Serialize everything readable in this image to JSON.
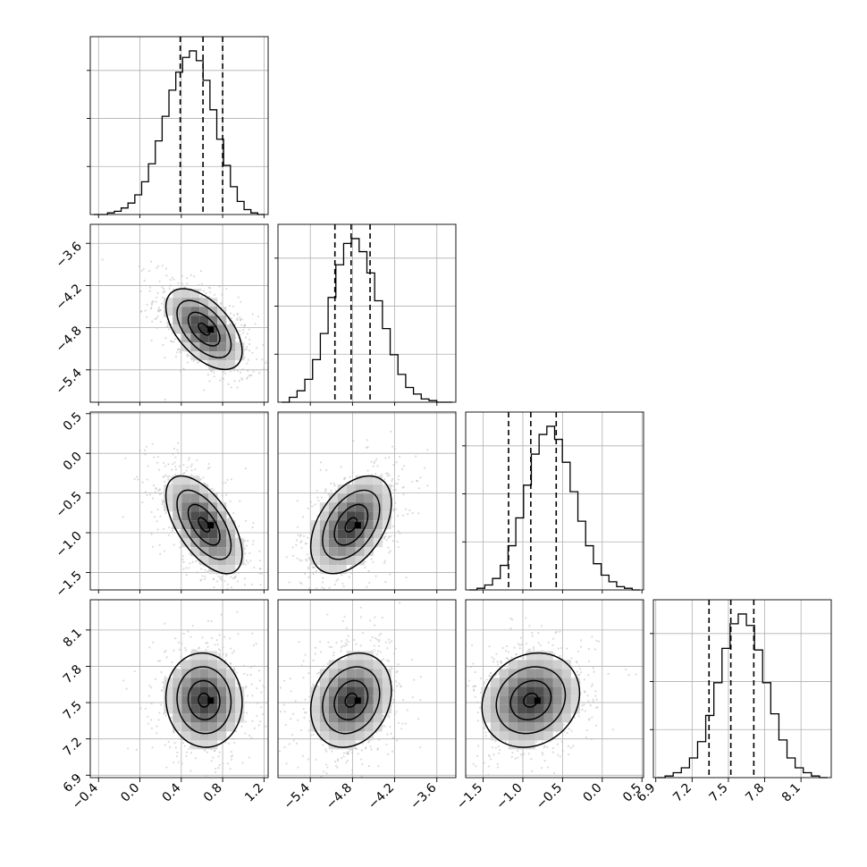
{
  "chart_data": {
    "type": "corner",
    "description": "Corner plot of 4 parameters: 1D marginal histograms on diagonal with dashed quantile lines; 2D scatter + density contours below diagonal.",
    "grid": true,
    "parameters": [
      {
        "ticks": [
          "−0.4",
          "0.0",
          "0.4",
          "0.8",
          "1.2"
        ],
        "tick_values": [
          -0.4,
          0.0,
          0.4,
          0.8,
          1.2
        ],
        "range": [
          -0.48,
          1.24
        ],
        "quantiles": [
          0.39,
          0.61,
          0.8
        ],
        "hist_bins": [
          -0.48,
          1.24
        ],
        "hist_heights": [
          0,
          0,
          1,
          2,
          4,
          7,
          12,
          20,
          31,
          45,
          60,
          76,
          87,
          96,
          100,
          94,
          82,
          64,
          46,
          30,
          17,
          8,
          3,
          1,
          0
        ]
      },
      {
        "ticks": [
          "−5.4",
          "−4.8",
          "−4.2",
          "−3.6"
        ],
        "tick_values": [
          -5.4,
          -4.8,
          -4.2,
          -3.6
        ],
        "range": [
          -5.86,
          -3.33
        ],
        "quantiles": [
          -5.05,
          -4.82,
          -4.55
        ],
        "hist_heights": [
          0,
          3,
          7,
          14,
          26,
          42,
          64,
          84,
          97,
          100,
          92,
          79,
          62,
          45,
          29,
          17,
          9,
          5,
          2,
          1,
          0,
          0
        ]
      },
      {
        "ticks": [
          "−1.5",
          "−1.0",
          "−0.5",
          "0.0",
          "0.5"
        ],
        "tick_values": [
          -1.5,
          -1.0,
          -0.5,
          0.0,
          0.5
        ],
        "range": [
          -1.72,
          0.52
        ],
        "quantiles": [
          -1.18,
          -0.9,
          -0.58
        ],
        "hist_heights": [
          0,
          1,
          3,
          7,
          15,
          27,
          44,
          64,
          83,
          95,
          100,
          92,
          78,
          60,
          42,
          27,
          16,
          9,
          5,
          2,
          1,
          0
        ]
      },
      {
        "ticks": [
          "6.9",
          "7.2",
          "7.5",
          "7.8",
          "8.1"
        ],
        "tick_values": [
          6.9,
          7.2,
          7.5,
          7.8,
          8.1
        ],
        "range": [
          6.88,
          8.35
        ],
        "quantiles": [
          7.34,
          7.52,
          7.71
        ],
        "hist_heights": [
          0,
          1,
          3,
          6,
          12,
          22,
          38,
          58,
          79,
          94,
          100,
          93,
          78,
          58,
          39,
          23,
          12,
          6,
          3,
          1,
          0
        ]
      }
    ],
    "pairs": [
      {
        "row": 1,
        "col": 0,
        "mean": [
          0.62,
          -4.82
        ],
        "corr": -0.55,
        "sd": [
          0.18,
          0.28
        ]
      },
      {
        "row": 2,
        "col": 0,
        "mean": [
          0.62,
          -0.9
        ],
        "corr": -0.6,
        "sd": [
          0.18,
          0.3
        ]
      },
      {
        "row": 2,
        "col": 1,
        "mean": [
          -4.82,
          -0.9
        ],
        "corr": 0.45,
        "sd": [
          0.28,
          0.3
        ]
      },
      {
        "row": 3,
        "col": 0,
        "mean": [
          0.62,
          7.52
        ],
        "corr": -0.05,
        "sd": [
          0.18,
          0.19
        ]
      },
      {
        "row": 3,
        "col": 1,
        "mean": [
          -4.82,
          7.52
        ],
        "corr": 0.2,
        "sd": [
          0.28,
          0.19
        ]
      },
      {
        "row": 3,
        "col": 2,
        "mean": [
          -0.9,
          7.52
        ],
        "corr": 0.15,
        "sd": [
          0.3,
          0.19
        ]
      }
    ]
  }
}
